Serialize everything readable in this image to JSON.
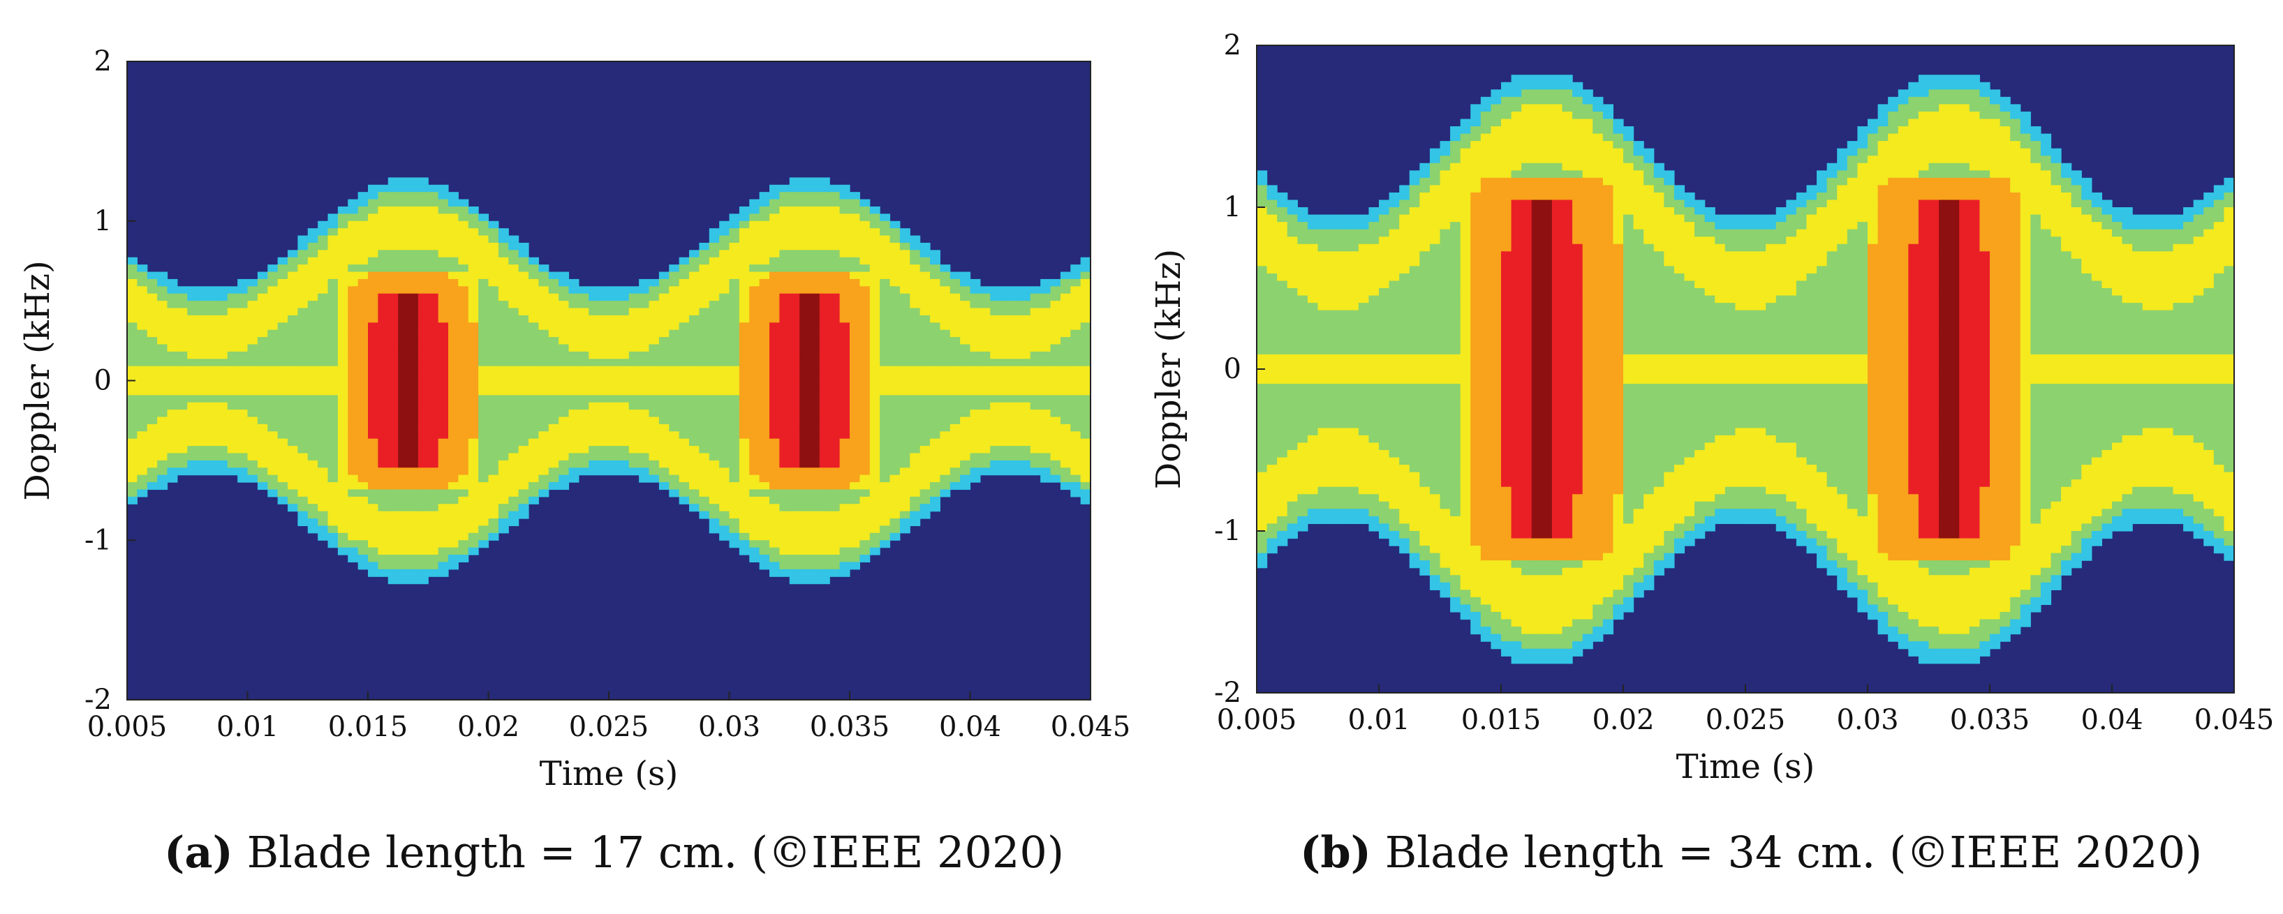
{
  "colors": {
    "background": "#262a78",
    "cyan": "#33c4e6",
    "green": "#8cd26e",
    "yellow": "#f4ea1e",
    "orange": "#f9a21c",
    "red": "#ea1f26",
    "darkred": "#8e1010"
  },
  "chart_data": [
    {
      "id": "a",
      "type": "heatmap",
      "title": "",
      "caption_letter": "(a)",
      "caption_text": "Blade length = 17 cm. (©IEEE 2020)",
      "xlabel": "Time (s)",
      "ylabel": "Doppler (kHz)",
      "xlim": [
        0.005,
        0.045
      ],
      "ylim": [
        -2,
        2
      ],
      "xticks": [
        "0.005",
        "0.01",
        "0.015",
        "0.02",
        "0.025",
        "0.03",
        "0.035",
        "0.04",
        "0.045"
      ],
      "yticks": [
        "-2",
        "-1",
        "0",
        "1",
        "2"
      ],
      "colormap": "jet",
      "signature": {
        "rotation_period_s": 0.0167,
        "blade_flash_times_s": [
          0.0167,
          0.0333
        ],
        "flash_halfwidth_s": 0.0012,
        "flash_doppler_extent_khz": 0.55,
        "envelope_max_khz": 0.97,
        "envelope_min_khz": 0.28,
        "band_halfwidth_khz": 0.32
      }
    },
    {
      "id": "b",
      "type": "heatmap",
      "title": "",
      "caption_letter": "(b)",
      "caption_text": "Blade length = 34 cm. (©IEEE 2020)",
      "xlabel": "Time (s)",
      "ylabel": "Doppler (kHz)",
      "xlim": [
        0.005,
        0.045
      ],
      "ylim": [
        -2,
        2
      ],
      "xticks": [
        "0.005",
        "0.01",
        "0.015",
        "0.02",
        "0.025",
        "0.03",
        "0.035",
        "0.04",
        "0.045"
      ],
      "yticks": [
        "-2",
        "-1",
        "0",
        "1",
        "2"
      ],
      "colormap": "jet",
      "signature": {
        "rotation_period_s": 0.0167,
        "blade_flash_times_s": [
          0.0167,
          0.0333
        ],
        "flash_halfwidth_s": 0.0014,
        "flash_doppler_extent_khz": 1.05,
        "envelope_max_khz": 1.45,
        "envelope_min_khz": 0.55,
        "band_halfwidth_khz": 0.42
      }
    }
  ]
}
